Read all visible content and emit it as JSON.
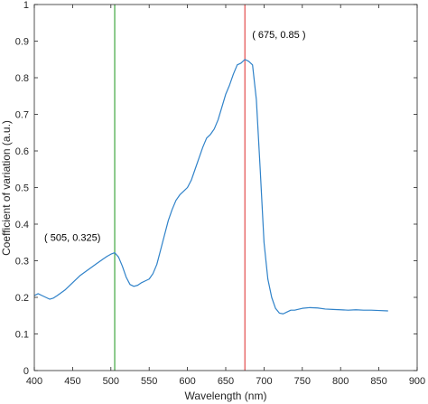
{
  "chart_data": {
    "type": "line",
    "xlabel": "Wavelength (nm)",
    "ylabel": "Coefficient of variation (a.u.)",
    "xlim": [
      400,
      900
    ],
    "ylim": [
      0,
      1
    ],
    "x_ticks": [
      400,
      450,
      500,
      550,
      600,
      650,
      700,
      750,
      800,
      850,
      900
    ],
    "y_ticks": [
      0,
      0.1,
      0.2,
      0.3,
      0.4,
      0.5,
      0.6,
      0.7,
      0.8,
      0.9,
      1
    ],
    "grid": false,
    "line_color": "#2f82c9",
    "series": [
      {
        "x": [
          400,
          405,
          410,
          415,
          420,
          425,
          430,
          440,
          450,
          460,
          470,
          480,
          490,
          495,
          500,
          505,
          510,
          515,
          520,
          525,
          530,
          535,
          540,
          545,
          550,
          555,
          560,
          565,
          570,
          575,
          580,
          585,
          590,
          595,
          600,
          605,
          610,
          615,
          620,
          625,
          630,
          635,
          640,
          645,
          650,
          655,
          660,
          665,
          670,
          675,
          680,
          685,
          690,
          695,
          700,
          705,
          710,
          715,
          720,
          725,
          730,
          735,
          740,
          750,
          760,
          770,
          780,
          790,
          800,
          810,
          820,
          830,
          840,
          850,
          862
        ],
        "y": [
          0.205,
          0.21,
          0.205,
          0.2,
          0.195,
          0.198,
          0.205,
          0.22,
          0.24,
          0.26,
          0.275,
          0.29,
          0.305,
          0.312,
          0.318,
          0.322,
          0.31,
          0.285,
          0.255,
          0.235,
          0.23,
          0.233,
          0.24,
          0.245,
          0.25,
          0.265,
          0.29,
          0.33,
          0.37,
          0.41,
          0.44,
          0.465,
          0.48,
          0.49,
          0.5,
          0.52,
          0.55,
          0.58,
          0.61,
          0.635,
          0.645,
          0.66,
          0.685,
          0.72,
          0.755,
          0.78,
          0.81,
          0.835,
          0.84,
          0.85,
          0.845,
          0.835,
          0.74,
          0.55,
          0.35,
          0.25,
          0.2,
          0.17,
          0.157,
          0.155,
          0.16,
          0.165,
          0.165,
          0.17,
          0.172,
          0.171,
          0.168,
          0.167,
          0.166,
          0.165,
          0.166,
          0.165,
          0.165,
          0.164,
          0.163
        ]
      }
    ],
    "vlines": [
      {
        "x": 505,
        "color": "#2e9e2e"
      },
      {
        "x": 675,
        "color": "#e03c3c"
      }
    ],
    "annotations": [
      {
        "text": "( 505, 0.325)",
        "x": 505,
        "y": 0.325
      },
      {
        "text": "( 675, 0.85 )",
        "x": 675,
        "y": 0.85
      }
    ]
  }
}
